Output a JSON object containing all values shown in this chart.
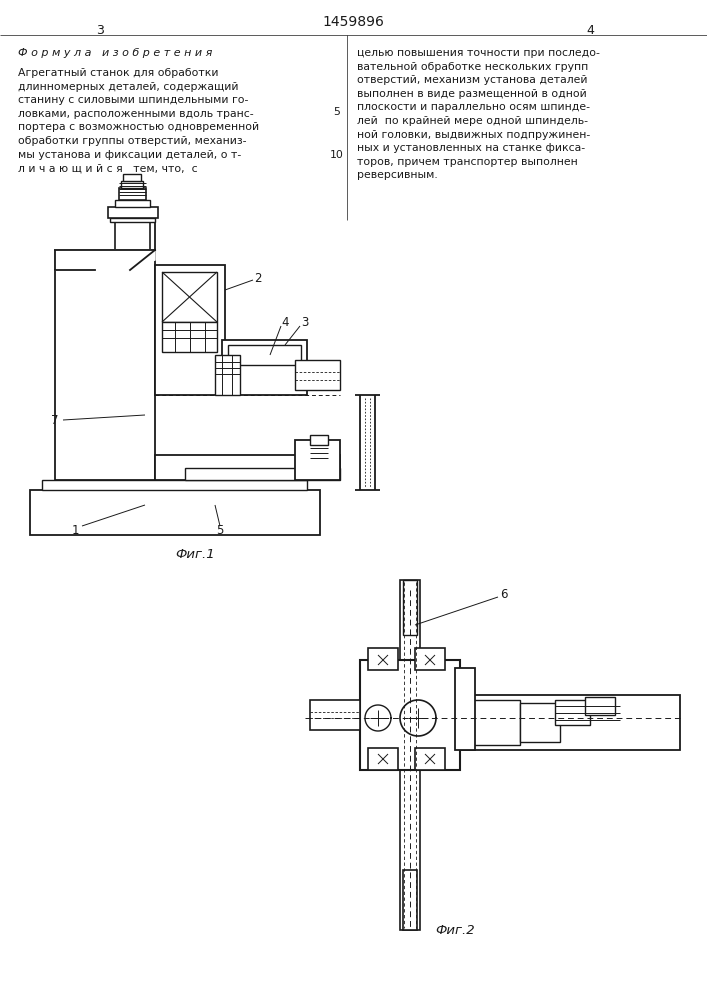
{
  "title": "1459896",
  "page_left": "3",
  "page_right": "4",
  "section_title": "Ф о р м у л а   и з о б р е т е н и я",
  "text_left": "Агрегатный станок для обработки\nдлинномерных деталей, содержащий\nстанину с силовыми шпиндельными го-\nловками, расположенными вдоль транс-\nпортера с возможностью одновременной\nобработки группы отверстий, механиз-\nмы установа и фиксации деталей, о т-\nл и ч а ю щ и й с я   тем, что,  с",
  "text_right": "целью повышения точности при последо-\nвательной обработке нескольких групп\nотверстий, механизм установа деталей\nвыполнен в виде размещенной в одной\nплоскости и параллельно осям шпинде-\nлей  по крайней мере одной шпиндель-\nной головки, выдвижных подпружинен-\nных и установленных на станке фикса-\nторов, причем транспортер выполнен\nреверсивным.",
  "fig1_label": "Фиг.1",
  "fig2_label": "Фиг.2",
  "bg_color": "#ffffff",
  "text_color": "#1a1a1a",
  "line_color": "#1a1a1a"
}
